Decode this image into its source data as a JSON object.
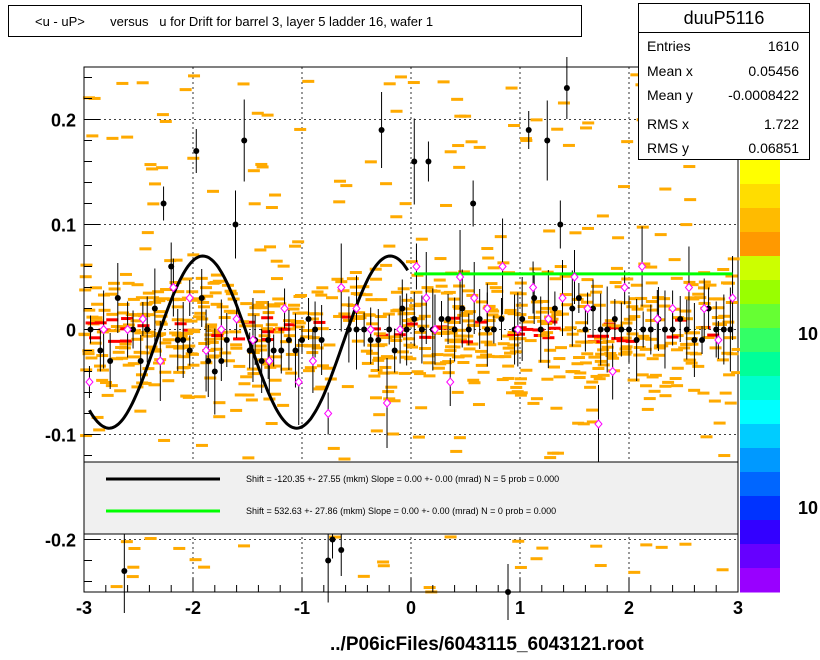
{
  "title": "<u - uP>       versus   u for Drift for barrel 3, layer 5 ladder 16, wafer 1",
  "stats": {
    "name": "duuP5116",
    "rows": [
      {
        "key": "Entries",
        "value": "1610"
      },
      {
        "key": "Mean x",
        "value": "0.05456"
      },
      {
        "key": "Mean y",
        "value": "-0.0008422"
      },
      {
        "key": "RMS x",
        "value": "1.722"
      },
      {
        "key": "RMS y",
        "value": "0.06851"
      }
    ]
  },
  "xlabel": "../P06icFiles/6043115_6043121.root",
  "legend": {
    "entries": [
      {
        "text": "Shift =  -120.35 +- 27.55 (mkm) Slope =     0.00 +- 0.00 (mrad)  N = 5 prob = 0.000",
        "color": "#000000"
      },
      {
        "text": "Shift =   532.63 +- 27.86 (mkm) Slope =     0.00 +- 0.00 (mrad)  N = 0 prob = 0.000",
        "color": "#00ff00"
      }
    ]
  },
  "z_axis": {
    "labels": [
      "10",
      "10"
    ]
  },
  "colors": {
    "hist": "#ffaa00",
    "hist_dark": "#ff0000",
    "black_fit": "#000000",
    "green_fit": "#00ff00",
    "profile_open": "#ff00ff"
  },
  "chart_data": {
    "type": "scatter",
    "xlim": [
      -3,
      3
    ],
    "ylim": [
      -0.25,
      0.25
    ],
    "x_ticks": [
      -3,
      -2,
      -1,
      0,
      1,
      2,
      3
    ],
    "y_ticks": [
      -0.2,
      -0.1,
      0,
      0.1,
      0.2
    ],
    "x_tick_labels": [
      "-3",
      "-2",
      "-1",
      "0",
      "1",
      "2",
      "3"
    ],
    "y_tick_labels": [
      "-0.2",
      "-0.1",
      "0",
      "0.1",
      "0.2"
    ],
    "grid": true,
    "black_points": [
      [
        -2.94,
        -0.0
      ],
      [
        -2.85,
        -0.02
      ],
      [
        -2.76,
        -0.03
      ],
      [
        -2.69,
        0.03
      ],
      [
        -2.63,
        -0.23
      ],
      [
        -2.55,
        0.0
      ],
      [
        -2.48,
        -0.03
      ],
      [
        -2.42,
        0.0
      ],
      [
        -2.35,
        0.02
      ],
      [
        -2.27,
        0.12
      ],
      [
        -2.2,
        0.06
      ],
      [
        -2.14,
        -0.01
      ],
      [
        -2.09,
        -0.01
      ],
      [
        -2.03,
        -0.02
      ],
      [
        -1.97,
        0.17
      ],
      [
        -1.92,
        0.03
      ],
      [
        -1.86,
        -0.03
      ],
      [
        -1.8,
        -0.04
      ],
      [
        -1.74,
        -0.03
      ],
      [
        -1.69,
        -0.01
      ],
      [
        -1.61,
        0.1
      ],
      [
        -1.53,
        0.18
      ],
      [
        -1.48,
        -0.02
      ],
      [
        -1.43,
        -0.01
      ],
      [
        -1.37,
        -0.03
      ],
      [
        -1.31,
        -0.01
      ],
      [
        -1.26,
        -0.02
      ],
      [
        -1.19,
        -0.02
      ],
      [
        -1.12,
        -0.01
      ],
      [
        -1.06,
        -0.02
      ],
      [
        -1.0,
        -0.01
      ],
      [
        -0.94,
        0.01
      ],
      [
        -0.88,
        0.0
      ],
      [
        -0.82,
        -0.01
      ],
      [
        -0.76,
        -0.22
      ],
      [
        -0.72,
        -0.2
      ],
      [
        -0.64,
        -0.21
      ],
      [
        -0.57,
        0.0
      ],
      [
        -0.5,
        0.0
      ],
      [
        -0.43,
        0.0
      ],
      [
        -0.37,
        -0.01
      ],
      [
        -0.3,
        -0.01
      ],
      [
        -0.27,
        0.19
      ],
      [
        -0.2,
        0.0
      ],
      [
        -0.15,
        -0.02
      ],
      [
        -0.08,
        0.02
      ],
      [
        -0.04,
        0.0
      ],
      [
        0.03,
        0.16
      ],
      [
        0.16,
        0.16
      ],
      [
        0.03,
        0.01
      ],
      [
        0.1,
        0.0
      ],
      [
        0.2,
        0.0
      ],
      [
        0.28,
        0.01
      ],
      [
        0.34,
        0.01
      ],
      [
        0.4,
        0.0
      ],
      [
        0.47,
        0.02
      ],
      [
        0.53,
        0.0
      ],
      [
        0.57,
        0.12
      ],
      [
        0.63,
        0.01
      ],
      [
        0.7,
        0.0
      ],
      [
        0.76,
        0.0
      ],
      [
        0.83,
        0.01
      ],
      [
        0.89,
        -0.25
      ],
      [
        0.95,
        0.0
      ],
      [
        1.02,
        0.01
      ],
      [
        1.08,
        0.19
      ],
      [
        1.13,
        0.03
      ],
      [
        1.19,
        0.0
      ],
      [
        1.25,
        0.18
      ],
      [
        1.32,
        0.02
      ],
      [
        1.37,
        0.1
      ],
      [
        1.43,
        0.23
      ],
      [
        1.48,
        0.02
      ],
      [
        1.54,
        0.03
      ],
      [
        1.6,
        0.0
      ],
      [
        1.67,
        0.02
      ],
      [
        1.74,
        0.0
      ],
      [
        1.8,
        0.0
      ],
      [
        1.87,
        0.01
      ],
      [
        1.93,
        0.0
      ],
      [
        2.0,
        0.0
      ],
      [
        2.07,
        -0.01
      ],
      [
        2.13,
        0.0
      ],
      [
        2.2,
        0.0
      ],
      [
        2.27,
        0.01
      ],
      [
        2.33,
        0.0
      ],
      [
        2.4,
        0.0
      ],
      [
        2.47,
        0.01
      ],
      [
        2.53,
        0.0
      ],
      [
        2.6,
        -0.01
      ],
      [
        2.67,
        -0.01
      ],
      [
        2.73,
        0.02
      ],
      [
        2.8,
        0.0
      ],
      [
        2.87,
        0.0
      ],
      [
        2.93,
        0.0
      ]
    ],
    "magenta_points": [
      [
        -2.95,
        -0.05
      ],
      [
        -2.82,
        0.0
      ],
      [
        -2.6,
        0.0
      ],
      [
        -2.46,
        0.01
      ],
      [
        -2.3,
        -0.03
      ],
      [
        -2.18,
        0.04
      ],
      [
        -2.03,
        0.03
      ],
      [
        -1.88,
        -0.02
      ],
      [
        -1.74,
        0.0
      ],
      [
        -1.6,
        0.01
      ],
      [
        -1.45,
        -0.01
      ],
      [
        -1.3,
        -0.03
      ],
      [
        -1.16,
        0.02
      ],
      [
        -1.03,
        -0.05
      ],
      [
        -0.9,
        -0.03
      ],
      [
        -0.76,
        -0.08
      ],
      [
        -0.64,
        0.04
      ],
      [
        -0.5,
        0.02
      ],
      [
        -0.37,
        0.0
      ],
      [
        -0.22,
        -0.07
      ],
      [
        -0.1,
        0.0
      ],
      [
        0.05,
        0.06
      ],
      [
        0.14,
        0.03
      ],
      [
        0.22,
        0.0
      ],
      [
        0.36,
        -0.05
      ],
      [
        0.45,
        0.05
      ],
      [
        0.58,
        0.03
      ],
      [
        0.7,
        0.02
      ],
      [
        0.84,
        0.06
      ],
      [
        0.98,
        0.0
      ],
      [
        1.12,
        0.04
      ],
      [
        1.26,
        0.01
      ],
      [
        1.39,
        0.03
      ],
      [
        1.5,
        0.05
      ],
      [
        1.62,
        0.02
      ],
      [
        1.72,
        -0.09
      ],
      [
        1.85,
        -0.04
      ],
      [
        1.96,
        0.04
      ],
      [
        2.12,
        0.06
      ],
      [
        2.26,
        0.01
      ],
      [
        2.4,
        0.02
      ],
      [
        2.55,
        0.04
      ],
      [
        2.69,
        0.02
      ],
      [
        2.82,
        -0.01
      ],
      [
        2.95,
        0.03
      ]
    ],
    "black_fit": {
      "x_range": [
        -2.95,
        -0.03
      ],
      "amplitude": 0.082,
      "period": 1.72,
      "phase_x": -2.34,
      "offset": -0.012
    },
    "green_fit": {
      "x_range": [
        0.03,
        2.95
      ],
      "y": 0.053
    },
    "hist_density": {
      "rows_y": [
        -0.06,
        -0.04,
        -0.02,
        0,
        0.02,
        0.04
      ],
      "note": ""
    }
  }
}
